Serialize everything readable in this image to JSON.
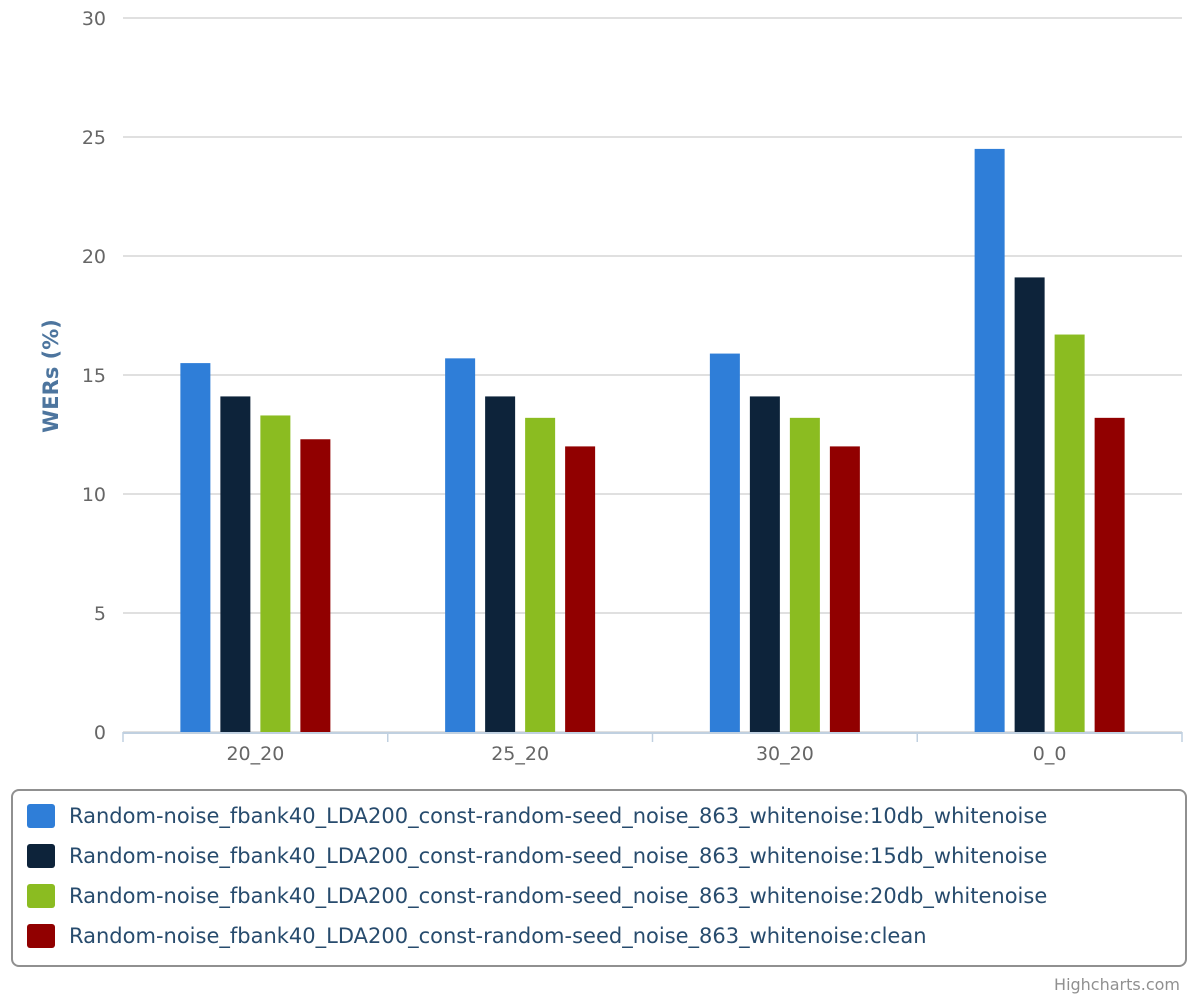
{
  "chart_data": {
    "type": "bar",
    "title": "",
    "xlabel": "",
    "ylabel": "WERs (%)",
    "ylim": [
      0,
      30
    ],
    "yticks": [
      0,
      5,
      10,
      15,
      20,
      25,
      30
    ],
    "grid": true,
    "legend_position": "bottom",
    "categories": [
      "20_20",
      "25_20",
      "30_20",
      "0_0"
    ],
    "series": [
      {
        "name": "Random-noise_fbank40_LDA200_const-random-seed_noise_863_whitenoise:10db_whitenoise",
        "color": "#2f7ed8",
        "values": [
          15.5,
          15.7,
          15.9,
          24.5
        ]
      },
      {
        "name": "Random-noise_fbank40_LDA200_const-random-seed_noise_863_whitenoise:15db_whitenoise",
        "color": "#0d233a",
        "values": [
          14.1,
          14.1,
          14.1,
          19.1
        ]
      },
      {
        "name": "Random-noise_fbank40_LDA200_const-random-seed_noise_863_whitenoise:20db_whitenoise",
        "color": "#8bbc21",
        "values": [
          13.3,
          13.2,
          13.2,
          16.7
        ]
      },
      {
        "name": "Random-noise_fbank40_LDA200_const-random-seed_noise_863_whitenoise:clean",
        "color": "#910000",
        "values": [
          12.3,
          12.0,
          12.0,
          13.2
        ]
      }
    ]
  },
  "credits": "Highcharts.com"
}
